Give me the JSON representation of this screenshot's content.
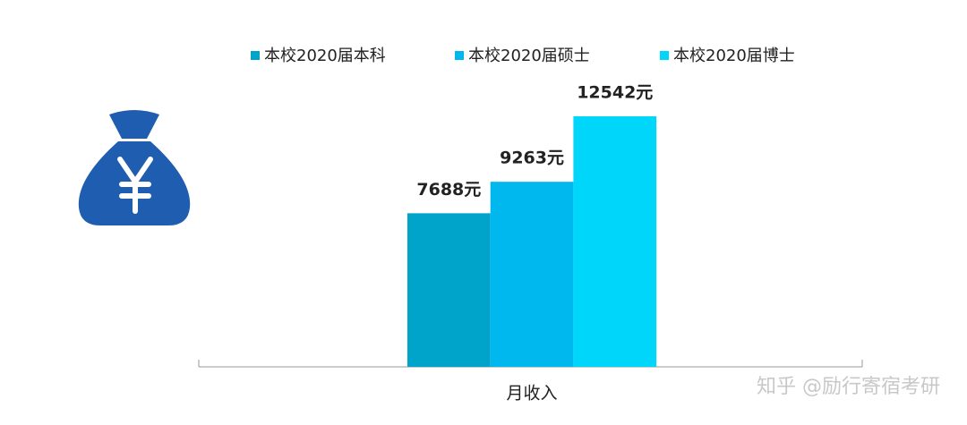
{
  "chart_data": {
    "type": "bar",
    "categories": [
      "月收入"
    ],
    "series": [
      {
        "name": "本校2020届本科",
        "color": "#00a3c9",
        "values": [
          7688
        ],
        "value_labels": [
          "7688元"
        ]
      },
      {
        "name": "本校2020届硕士",
        "color": "#00b8ee",
        "values": [
          9263
        ],
        "value_labels": [
          "9263元"
        ]
      },
      {
        "name": "本校2020届博士",
        "color": "#00d6fa",
        "values": [
          12542
        ],
        "value_labels": [
          "12542元"
        ]
      }
    ],
    "ylim": [
      0,
      14000
    ]
  },
  "watermark": "知乎 @励行寄宿考研"
}
